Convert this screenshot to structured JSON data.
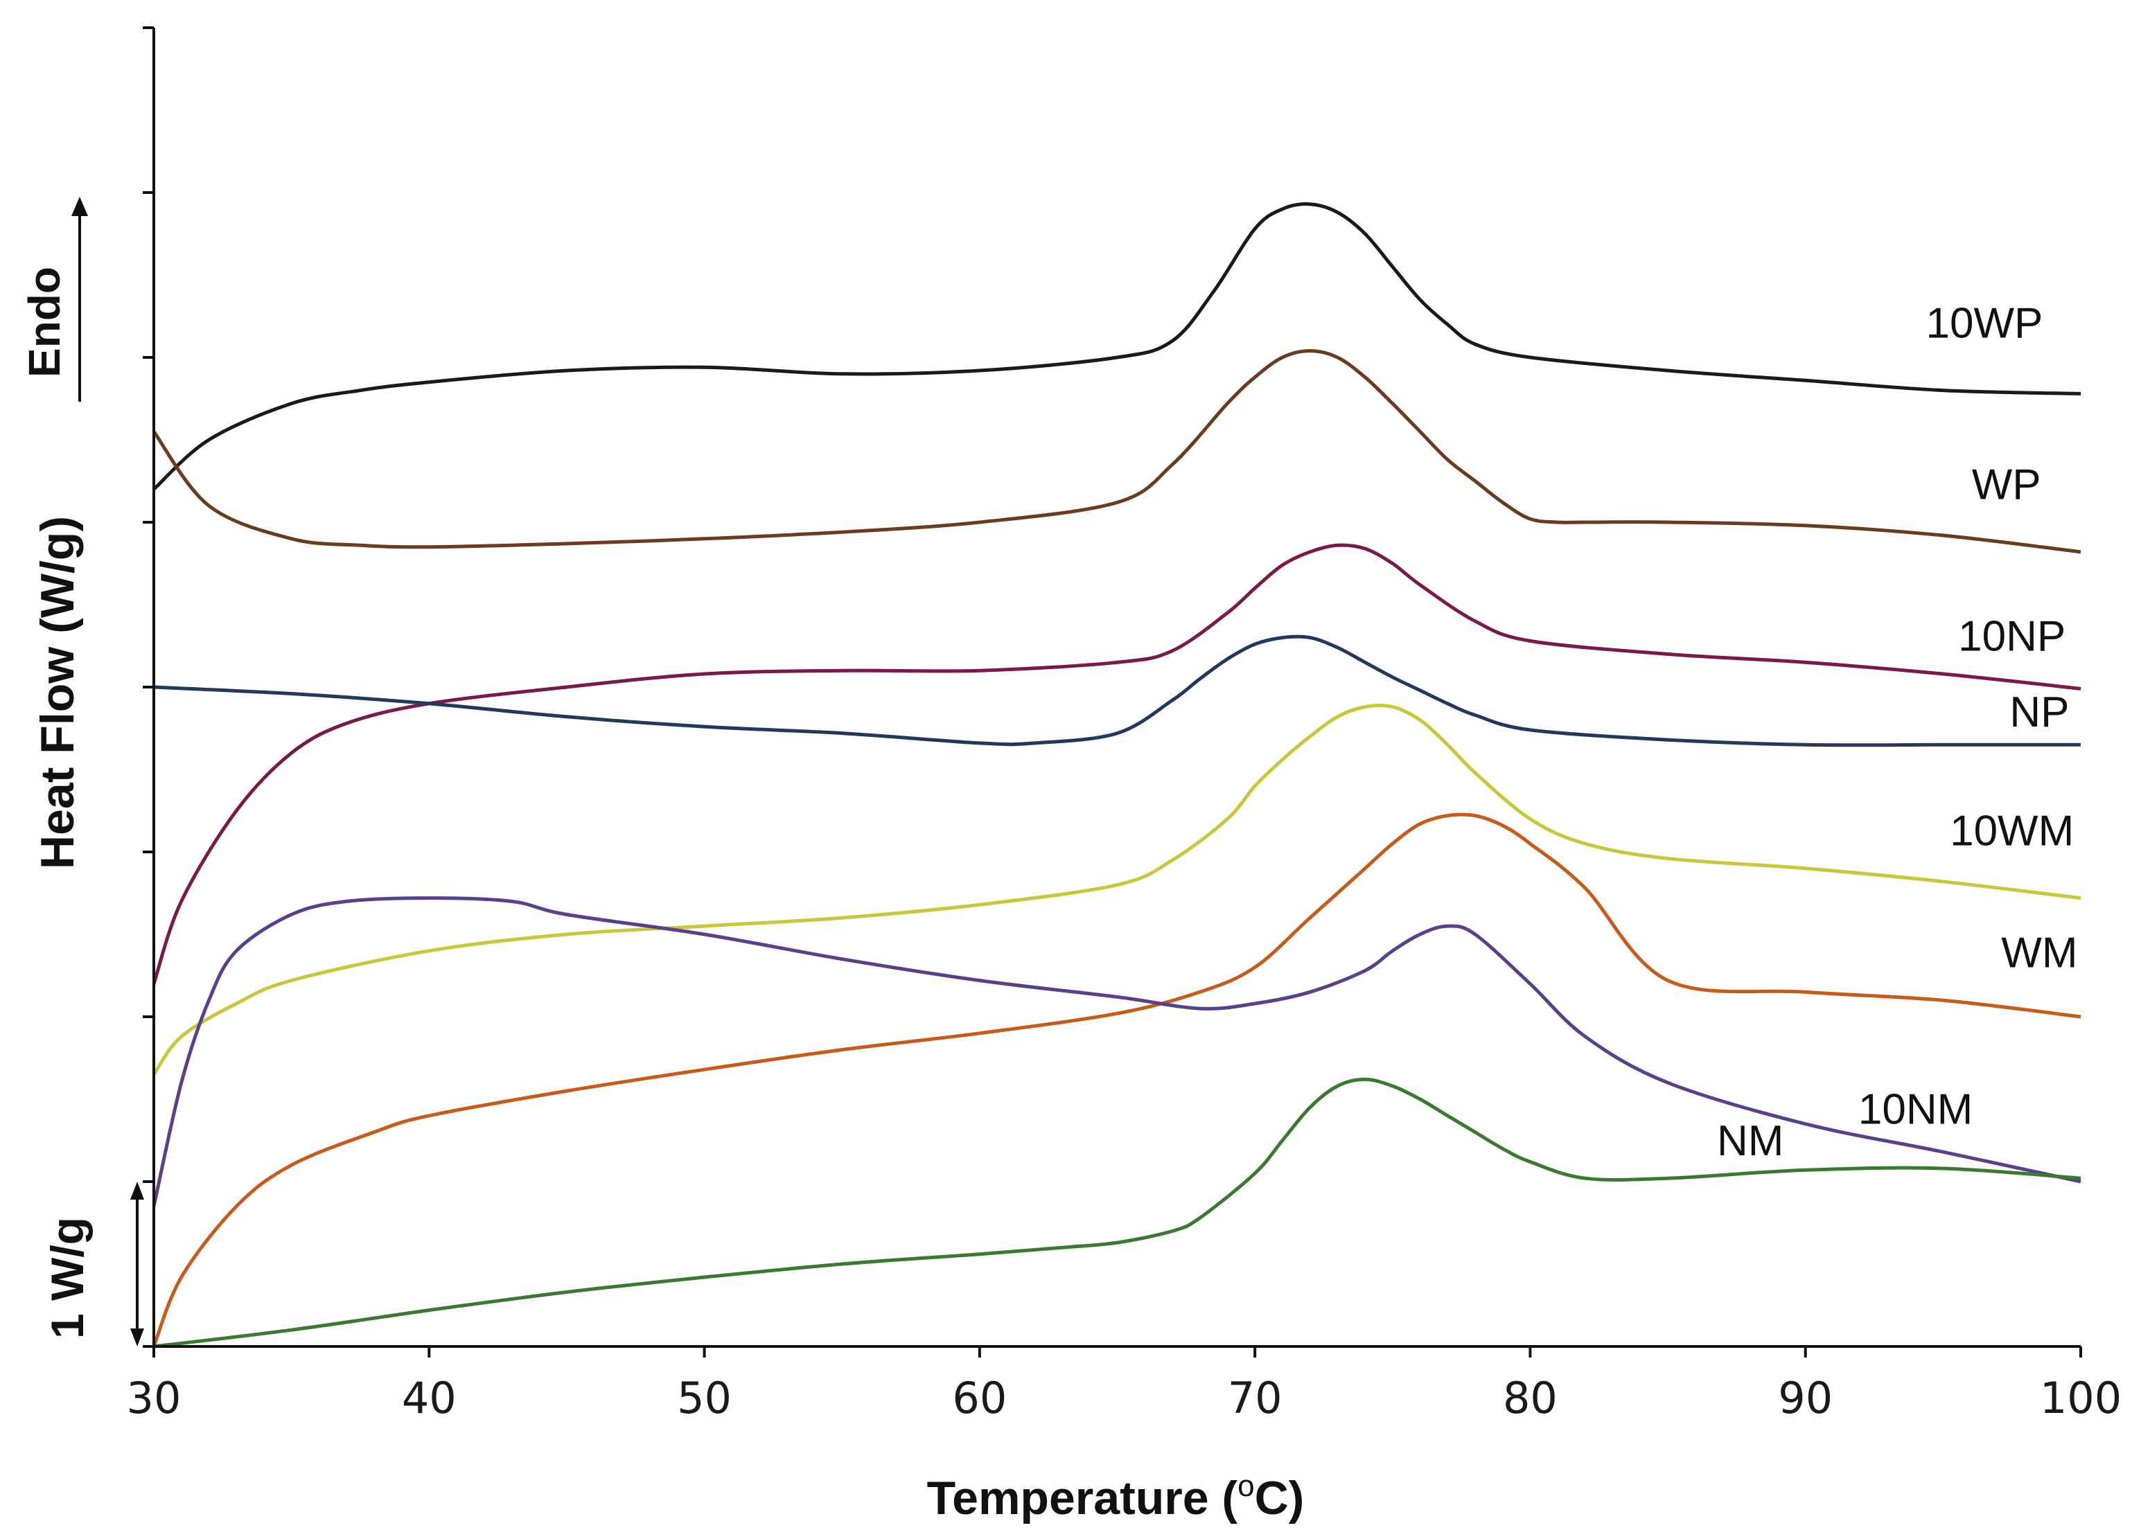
{
  "chart_data": {
    "type": "line",
    "title": "",
    "xlabel_prefix": "Temperature (",
    "xlabel_superscript": "o",
    "xlabel_suffix": "C)",
    "ylabel": "Heat Flow (W/g)",
    "xlim": [
      30,
      100
    ],
    "ylim": [
      0,
      8
    ],
    "xticks": [
      30,
      40,
      50,
      60,
      70,
      80,
      90,
      100
    ],
    "xtick_labels": [
      "30",
      "40",
      "50",
      "60",
      "70",
      "80",
      "90",
      "100"
    ],
    "yticks": [
      0,
      1,
      2,
      3,
      4,
      5,
      6,
      7,
      8
    ],
    "y_tick_labels_shown": false,
    "endo_label": "Endo",
    "scale_bar": {
      "label": "1 W/g",
      "value": 1
    },
    "series": [
      {
        "name": "10WP",
        "color": "#1a1a1a",
        "x": [
          30,
          32,
          35,
          37.5,
          40,
          45,
          50,
          55,
          60,
          65,
          67,
          68.5,
          70,
          71,
          72,
          73,
          74,
          75,
          76,
          77,
          78,
          80,
          85,
          90,
          95,
          100
        ],
        "y": [
          5.2,
          5.5,
          5.72,
          5.8,
          5.85,
          5.92,
          5.94,
          5.9,
          5.92,
          6.0,
          6.1,
          6.4,
          6.78,
          6.9,
          6.93,
          6.88,
          6.75,
          6.55,
          6.35,
          6.2,
          6.08,
          6.0,
          5.92,
          5.86,
          5.8,
          5.78
        ]
      },
      {
        "name": "WP",
        "color": "#6b3a1f",
        "x": [
          30,
          32,
          35,
          37.5,
          40,
          45,
          50,
          55,
          60,
          65,
          67,
          69,
          70,
          71,
          72,
          73,
          74,
          75,
          76,
          77,
          78,
          79,
          80,
          81,
          82,
          85,
          90,
          95,
          100
        ],
        "y": [
          5.55,
          5.1,
          4.9,
          4.86,
          4.85,
          4.87,
          4.9,
          4.94,
          5.0,
          5.12,
          5.35,
          5.72,
          5.88,
          6.0,
          6.04,
          6.0,
          5.88,
          5.72,
          5.55,
          5.38,
          5.25,
          5.12,
          5.02,
          5.0,
          5.0,
          5.0,
          4.98,
          4.92,
          4.82
        ]
      },
      {
        "name": "10NP",
        "color": "#7a1a4a",
        "x": [
          30,
          31,
          33,
          35,
          37,
          40,
          45,
          50,
          55,
          60,
          65,
          67,
          69,
          70,
          71,
          72,
          73,
          74,
          75,
          76,
          78,
          80,
          85,
          90,
          95,
          100
        ],
        "y": [
          2.2,
          2.7,
          3.25,
          3.6,
          3.78,
          3.9,
          4.0,
          4.08,
          4.1,
          4.1,
          4.15,
          4.22,
          4.45,
          4.6,
          4.74,
          4.82,
          4.86,
          4.84,
          4.75,
          4.62,
          4.4,
          4.28,
          4.2,
          4.15,
          4.08,
          3.99
        ]
      },
      {
        "name": "NP",
        "color": "#24385e",
        "x": [
          30,
          35,
          40,
          45,
          50,
          55,
          60,
          62,
          65,
          67,
          68,
          69,
          70,
          71,
          72,
          73,
          74,
          75,
          76,
          77,
          78,
          80,
          85,
          90,
          95,
          100
        ],
        "y": [
          4.0,
          3.96,
          3.9,
          3.82,
          3.76,
          3.72,
          3.66,
          3.66,
          3.72,
          3.92,
          4.05,
          4.17,
          4.26,
          4.3,
          4.3,
          4.24,
          4.15,
          4.06,
          3.98,
          3.9,
          3.83,
          3.74,
          3.68,
          3.65,
          3.65,
          3.65
        ]
      },
      {
        "name": "10WM",
        "color": "#c8c83a",
        "x": [
          30,
          31,
          33,
          35,
          40,
          45,
          50,
          55,
          60,
          65,
          67,
          69,
          70,
          71,
          72,
          73,
          74,
          75,
          76,
          77,
          78,
          80,
          82,
          85,
          90,
          95,
          100
        ],
        "y": [
          1.65,
          1.88,
          2.08,
          2.22,
          2.4,
          2.5,
          2.55,
          2.6,
          2.68,
          2.8,
          2.95,
          3.2,
          3.4,
          3.56,
          3.7,
          3.82,
          3.88,
          3.88,
          3.8,
          3.65,
          3.48,
          3.2,
          3.05,
          2.96,
          2.9,
          2.82,
          2.72
        ]
      },
      {
        "name": "WM",
        "color": "#c85a1a",
        "x": [
          30,
          31,
          33,
          35,
          38,
          40,
          45,
          50,
          55,
          60,
          65,
          68,
          70,
          72,
          74,
          75,
          76,
          77,
          78,
          79,
          80,
          82,
          85,
          90,
          95,
          100
        ],
        "y": [
          0.0,
          0.42,
          0.85,
          1.1,
          1.3,
          1.4,
          1.55,
          1.68,
          1.8,
          1.9,
          2.02,
          2.15,
          2.3,
          2.6,
          2.9,
          3.05,
          3.17,
          3.22,
          3.22,
          3.16,
          3.05,
          2.78,
          2.22,
          2.15,
          2.1,
          2.0
        ]
      },
      {
        "name": "10NM",
        "color": "#5a3f8c",
        "x": [
          30,
          31,
          32,
          33,
          35,
          37,
          40,
          43,
          45,
          50,
          55,
          60,
          65,
          68,
          70,
          72,
          74,
          75,
          76,
          77,
          78,
          80,
          82,
          85,
          90,
          95,
          100
        ],
        "y": [
          0.85,
          1.6,
          2.1,
          2.4,
          2.62,
          2.7,
          2.72,
          2.7,
          2.62,
          2.5,
          2.35,
          2.22,
          2.12,
          2.05,
          2.08,
          2.15,
          2.28,
          2.4,
          2.5,
          2.55,
          2.5,
          2.2,
          1.88,
          1.6,
          1.35,
          1.18,
          1.0
        ]
      },
      {
        "name": "NM",
        "color": "#3a7a30",
        "x": [
          30,
          35,
          40,
          45,
          50,
          55,
          60,
          63,
          65,
          67,
          68,
          70,
          71,
          72,
          73,
          74,
          75,
          76,
          77,
          78,
          79,
          80,
          82,
          85,
          90,
          95,
          100
        ],
        "y": [
          0.0,
          0.1,
          0.22,
          0.33,
          0.42,
          0.5,
          0.56,
          0.6,
          0.63,
          0.7,
          0.78,
          1.05,
          1.25,
          1.45,
          1.58,
          1.62,
          1.58,
          1.5,
          1.4,
          1.3,
          1.2,
          1.12,
          1.02,
          1.02,
          1.07,
          1.08,
          1.02
        ]
      }
    ]
  }
}
